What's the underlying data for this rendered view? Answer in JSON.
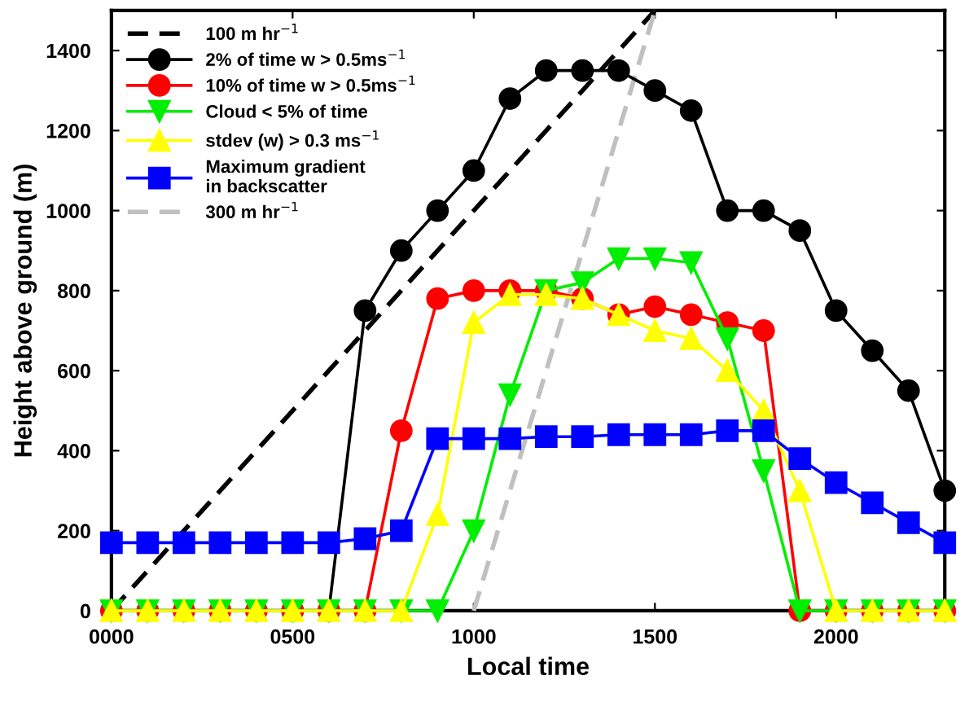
{
  "chart_data": {
    "type": "line",
    "xlabel": "Local time",
    "ylabel": "Height above ground (m)",
    "x": [
      0,
      100,
      200,
      300,
      400,
      500,
      600,
      700,
      800,
      900,
      1000,
      1100,
      1200,
      1300,
      1400,
      1500,
      1600,
      1700,
      1800,
      1900,
      2000,
      2100,
      2200,
      2300
    ],
    "series": [
      {
        "name": "100 m hr$^{−1}$",
        "color": "#000000",
        "x": [
          0,
          1500
        ],
        "values": [
          0,
          1500
        ],
        "line_style": "dashed"
      },
      {
        "name": "2% of time w > 0.5ms$^{−1}$",
        "color": "#000000",
        "marker": "circle",
        "values": [
          null,
          null,
          null,
          null,
          null,
          0,
          0,
          750,
          900,
          1000,
          1100,
          1280,
          1350,
          1350,
          1350,
          1300,
          1250,
          1000,
          1000,
          950,
          750,
          650,
          550,
          300
        ]
      },
      {
        "name": "10% of time w > 0.5ms$^{−1}$",
        "color": "#ff0000",
        "marker": "circle",
        "values": [
          0,
          0,
          0,
          0,
          0,
          0,
          0,
          0,
          450,
          780,
          800,
          800,
          800,
          780,
          740,
          760,
          740,
          720,
          700,
          0,
          0,
          0,
          0,
          0
        ]
      },
      {
        "name": "Cloud < 5% of time",
        "color": "#00ee00",
        "marker": "triangle_down",
        "values": [
          0,
          0,
          0,
          0,
          0,
          0,
          0,
          0,
          0,
          0,
          200,
          540,
          800,
          820,
          880,
          880,
          870,
          680,
          350,
          0,
          0,
          0,
          0,
          0
        ]
      },
      {
        "name": "stdev (w) > 0.3 ms$^{−1}$",
        "color": "#ffff00",
        "marker": "triangle",
        "values": [
          0,
          0,
          0,
          0,
          0,
          0,
          0,
          0,
          0,
          240,
          720,
          790,
          790,
          780,
          740,
          700,
          680,
          600,
          500,
          300,
          0,
          0,
          0,
          0
        ]
      },
      {
        "name": "Maximum gradient\nin backscatter",
        "color": "#0000ff",
        "marker": "square",
        "values": [
          170,
          170,
          170,
          170,
          170,
          170,
          170,
          180,
          200,
          430,
          430,
          430,
          435,
          435,
          440,
          440,
          440,
          450,
          450,
          380,
          320,
          270,
          220,
          170
        ]
      },
      {
        "name": "300 m hr$^{−1}$",
        "color": "#c0c0c0",
        "x": [
          1000,
          1500
        ],
        "values": [
          0,
          1500
        ],
        "line_style": "dashed"
      }
    ],
    "xlim": [
      0,
      2300
    ],
    "ylim": [
      0,
      1500
    ],
    "xticks": [
      {
        "value": 0,
        "label": "0000"
      },
      {
        "value": 500,
        "label": "0500"
      },
      1000,
      1500,
      2000
    ],
    "yticks": [
      0,
      200,
      400,
      600,
      800,
      1000,
      1200,
      1400
    ],
    "grid": false,
    "legend": "top left"
  }
}
